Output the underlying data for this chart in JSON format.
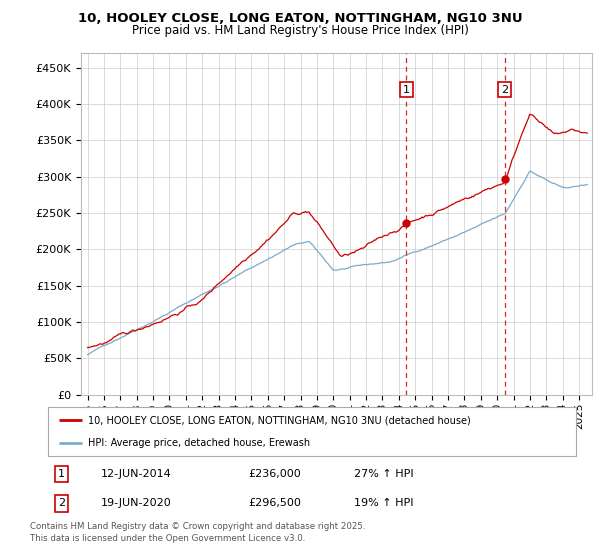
{
  "title_line1": "10, HOOLEY CLOSE, LONG EATON, NOTTINGHAM, NG10 3NU",
  "title_line2": "Price paid vs. HM Land Registry's House Price Index (HPI)",
  "ylim": [
    0,
    470000
  ],
  "yticks": [
    0,
    50000,
    100000,
    150000,
    200000,
    250000,
    300000,
    350000,
    400000,
    450000
  ],
  "ytick_labels": [
    "£0",
    "£50K",
    "£100K",
    "£150K",
    "£200K",
    "£250K",
    "£300K",
    "£350K",
    "£400K",
    "£450K"
  ],
  "xlim_start": 1994.6,
  "xlim_end": 2025.8,
  "xticks": [
    1995,
    1996,
    1997,
    1998,
    1999,
    2000,
    2001,
    2002,
    2003,
    2004,
    2005,
    2006,
    2007,
    2008,
    2009,
    2010,
    2011,
    2012,
    2013,
    2014,
    2015,
    2016,
    2017,
    2018,
    2019,
    2020,
    2021,
    2022,
    2023,
    2024,
    2025
  ],
  "red_color": "#cc0000",
  "blue_color": "#7aaacc",
  "vline_color": "#cc0000",
  "marker1_x": 2014.45,
  "marker1_y": 236000,
  "marker2_x": 2020.46,
  "marker2_y": 296500,
  "legend_red": "10, HOOLEY CLOSE, LONG EATON, NOTTINGHAM, NG10 3NU (detached house)",
  "legend_blue": "HPI: Average price, detached house, Erewash",
  "table_rows": [
    {
      "num": "1",
      "date": "12-JUN-2014",
      "price": "£236,000",
      "change": "27% ↑ HPI"
    },
    {
      "num": "2",
      "date": "19-JUN-2020",
      "price": "£296,500",
      "change": "19% ↑ HPI"
    }
  ],
  "footnote": "Contains HM Land Registry data © Crown copyright and database right 2025.\nThis data is licensed under the Open Government Licence v3.0.",
  "background_color": "#ffffff"
}
